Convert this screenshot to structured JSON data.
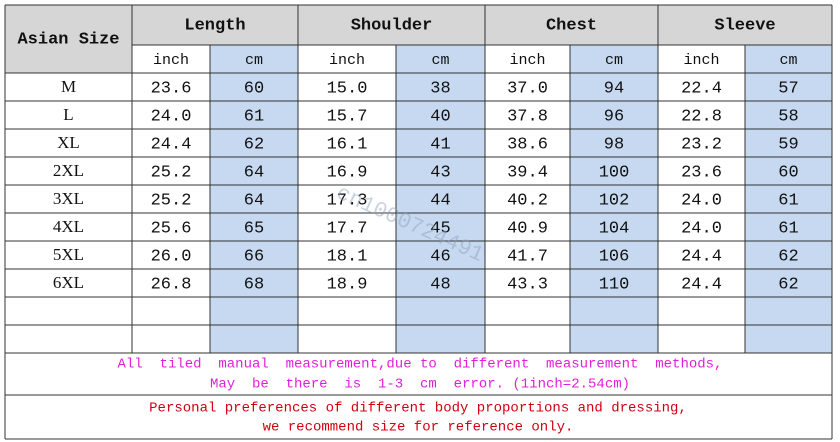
{
  "header": {
    "size_label": "Asian Size",
    "groups": [
      "Length",
      "Shoulder",
      "Chest",
      "Sleeve"
    ],
    "units": [
      "inch",
      "cm"
    ]
  },
  "rows": [
    [
      "M",
      "23.6",
      "60",
      "15.0",
      "38",
      "37.0",
      "94",
      "22.4",
      "57"
    ],
    [
      "L",
      "24.0",
      "61",
      "15.7",
      "40",
      "37.8",
      "96",
      "22.8",
      "58"
    ],
    [
      "XL",
      "24.4",
      "62",
      "16.1",
      "41",
      "38.6",
      "98",
      "23.2",
      "59"
    ],
    [
      "2XL",
      "25.2",
      "64",
      "16.9",
      "43",
      "39.4",
      "100",
      "23.6",
      "60"
    ],
    [
      "3XL",
      "25.2",
      "64",
      "17.3",
      "44",
      "40.2",
      "102",
      "24.0",
      "61"
    ],
    [
      "4XL",
      "25.6",
      "65",
      "17.7",
      "45",
      "40.9",
      "104",
      "24.0",
      "61"
    ],
    [
      "5XL",
      "26.0",
      "66",
      "18.1",
      "46",
      "41.7",
      "106",
      "24.4",
      "62"
    ],
    [
      "6XL",
      "26.8",
      "68",
      "18.9",
      "48",
      "43.3",
      "110",
      "24.4",
      "62"
    ]
  ],
  "notes": [
    "All  tiled  manual  measurement,due to  different  measurement  methods,",
    "May  be  there  is  1-3  cm  error. (1inch=2.54cm)"
  ],
  "advice": [
    "Personal preferences of different body proportions and dressing,",
    "we recommend size for reference only."
  ],
  "watermark": "cn1000724491"
}
